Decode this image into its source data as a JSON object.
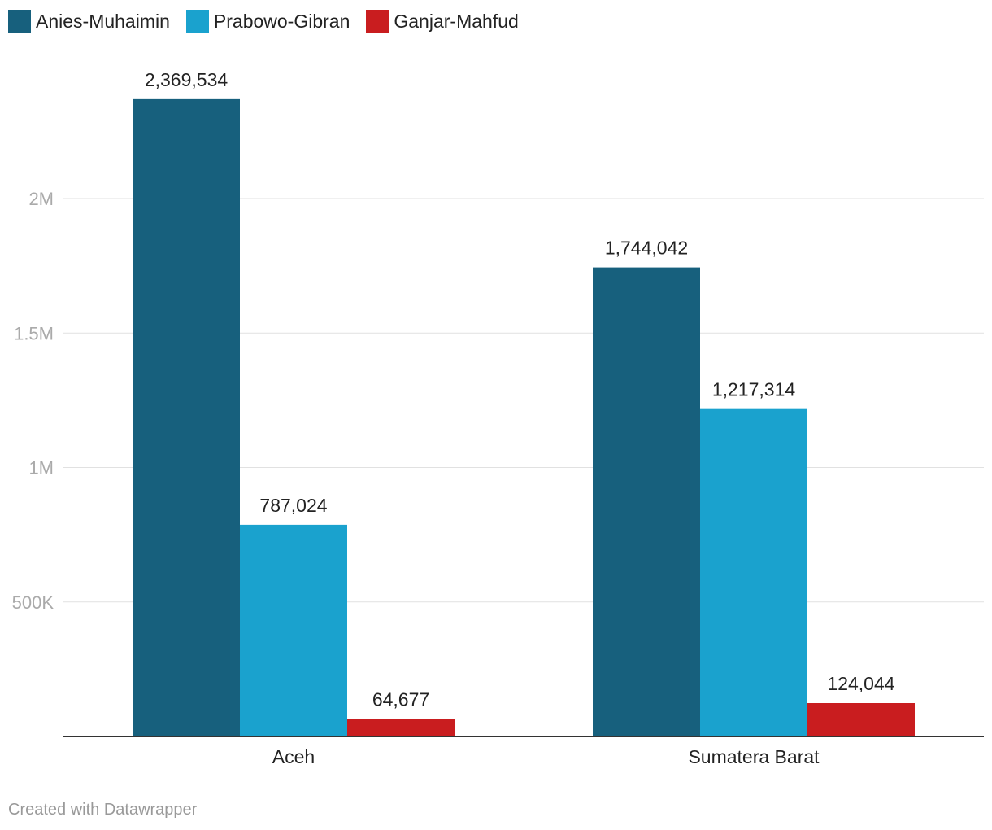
{
  "chart_data": {
    "type": "bar",
    "categories": [
      "Aceh",
      "Sumatera Barat"
    ],
    "series": [
      {
        "name": "Anies-Muhaimin",
        "color": "#17607d",
        "values": [
          2369534,
          1744042
        ],
        "labels": [
          "2,369,534",
          "1,744,042"
        ]
      },
      {
        "name": "Prabowo-Gibran",
        "color": "#1aa2ce",
        "values": [
          787024,
          1217314
        ],
        "labels": [
          "787,024",
          "1,217,314"
        ]
      },
      {
        "name": "Ganjar-Mahfud",
        "color": "#c91d1f",
        "values": [
          64677,
          124044
        ],
        "labels": [
          "64,677",
          "124,044"
        ]
      }
    ],
    "yticks": [
      {
        "value": 500000,
        "label": "500K"
      },
      {
        "value": 1000000,
        "label": "1M"
      },
      {
        "value": 1500000,
        "label": "1.5M"
      },
      {
        "value": 2000000,
        "label": "2M"
      }
    ],
    "ylim": [
      0,
      2400000
    ],
    "grid": true,
    "legend_position": "top-left"
  },
  "footer": {
    "credit": "Created with Datawrapper"
  }
}
